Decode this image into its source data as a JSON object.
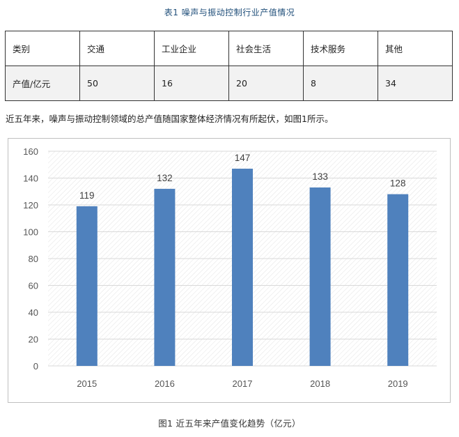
{
  "table": {
    "title": "表1 噪声与振动控制行业产值情况",
    "header": [
      "类别",
      "交通",
      "工业企业",
      "社会生活",
      "技术服务",
      "其他"
    ],
    "row": [
      "产值/亿元",
      "50",
      "16",
      "20",
      "8",
      "34"
    ]
  },
  "paragraph": "近五年来，噪声与振动控制领域的总产值随国家整体经济情况有所起伏，如图1所示。",
  "caption": "图1 近五年来产值变化趋势（亿元）",
  "colors": {
    "bar": "#4f81bd",
    "grid": "#d9d9d9",
    "title": "#1f4e79"
  },
  "chart_data": {
    "type": "bar",
    "categories": [
      "2015",
      "2016",
      "2017",
      "2018",
      "2019"
    ],
    "values": [
      119,
      132,
      147,
      133,
      128
    ],
    "title": "",
    "xlabel": "",
    "ylabel": "",
    "ylim": [
      0,
      160
    ],
    "yticks": [
      0,
      20,
      40,
      60,
      80,
      100,
      120,
      140,
      160
    ],
    "grid": true,
    "data_labels": true,
    "legend": "none"
  }
}
